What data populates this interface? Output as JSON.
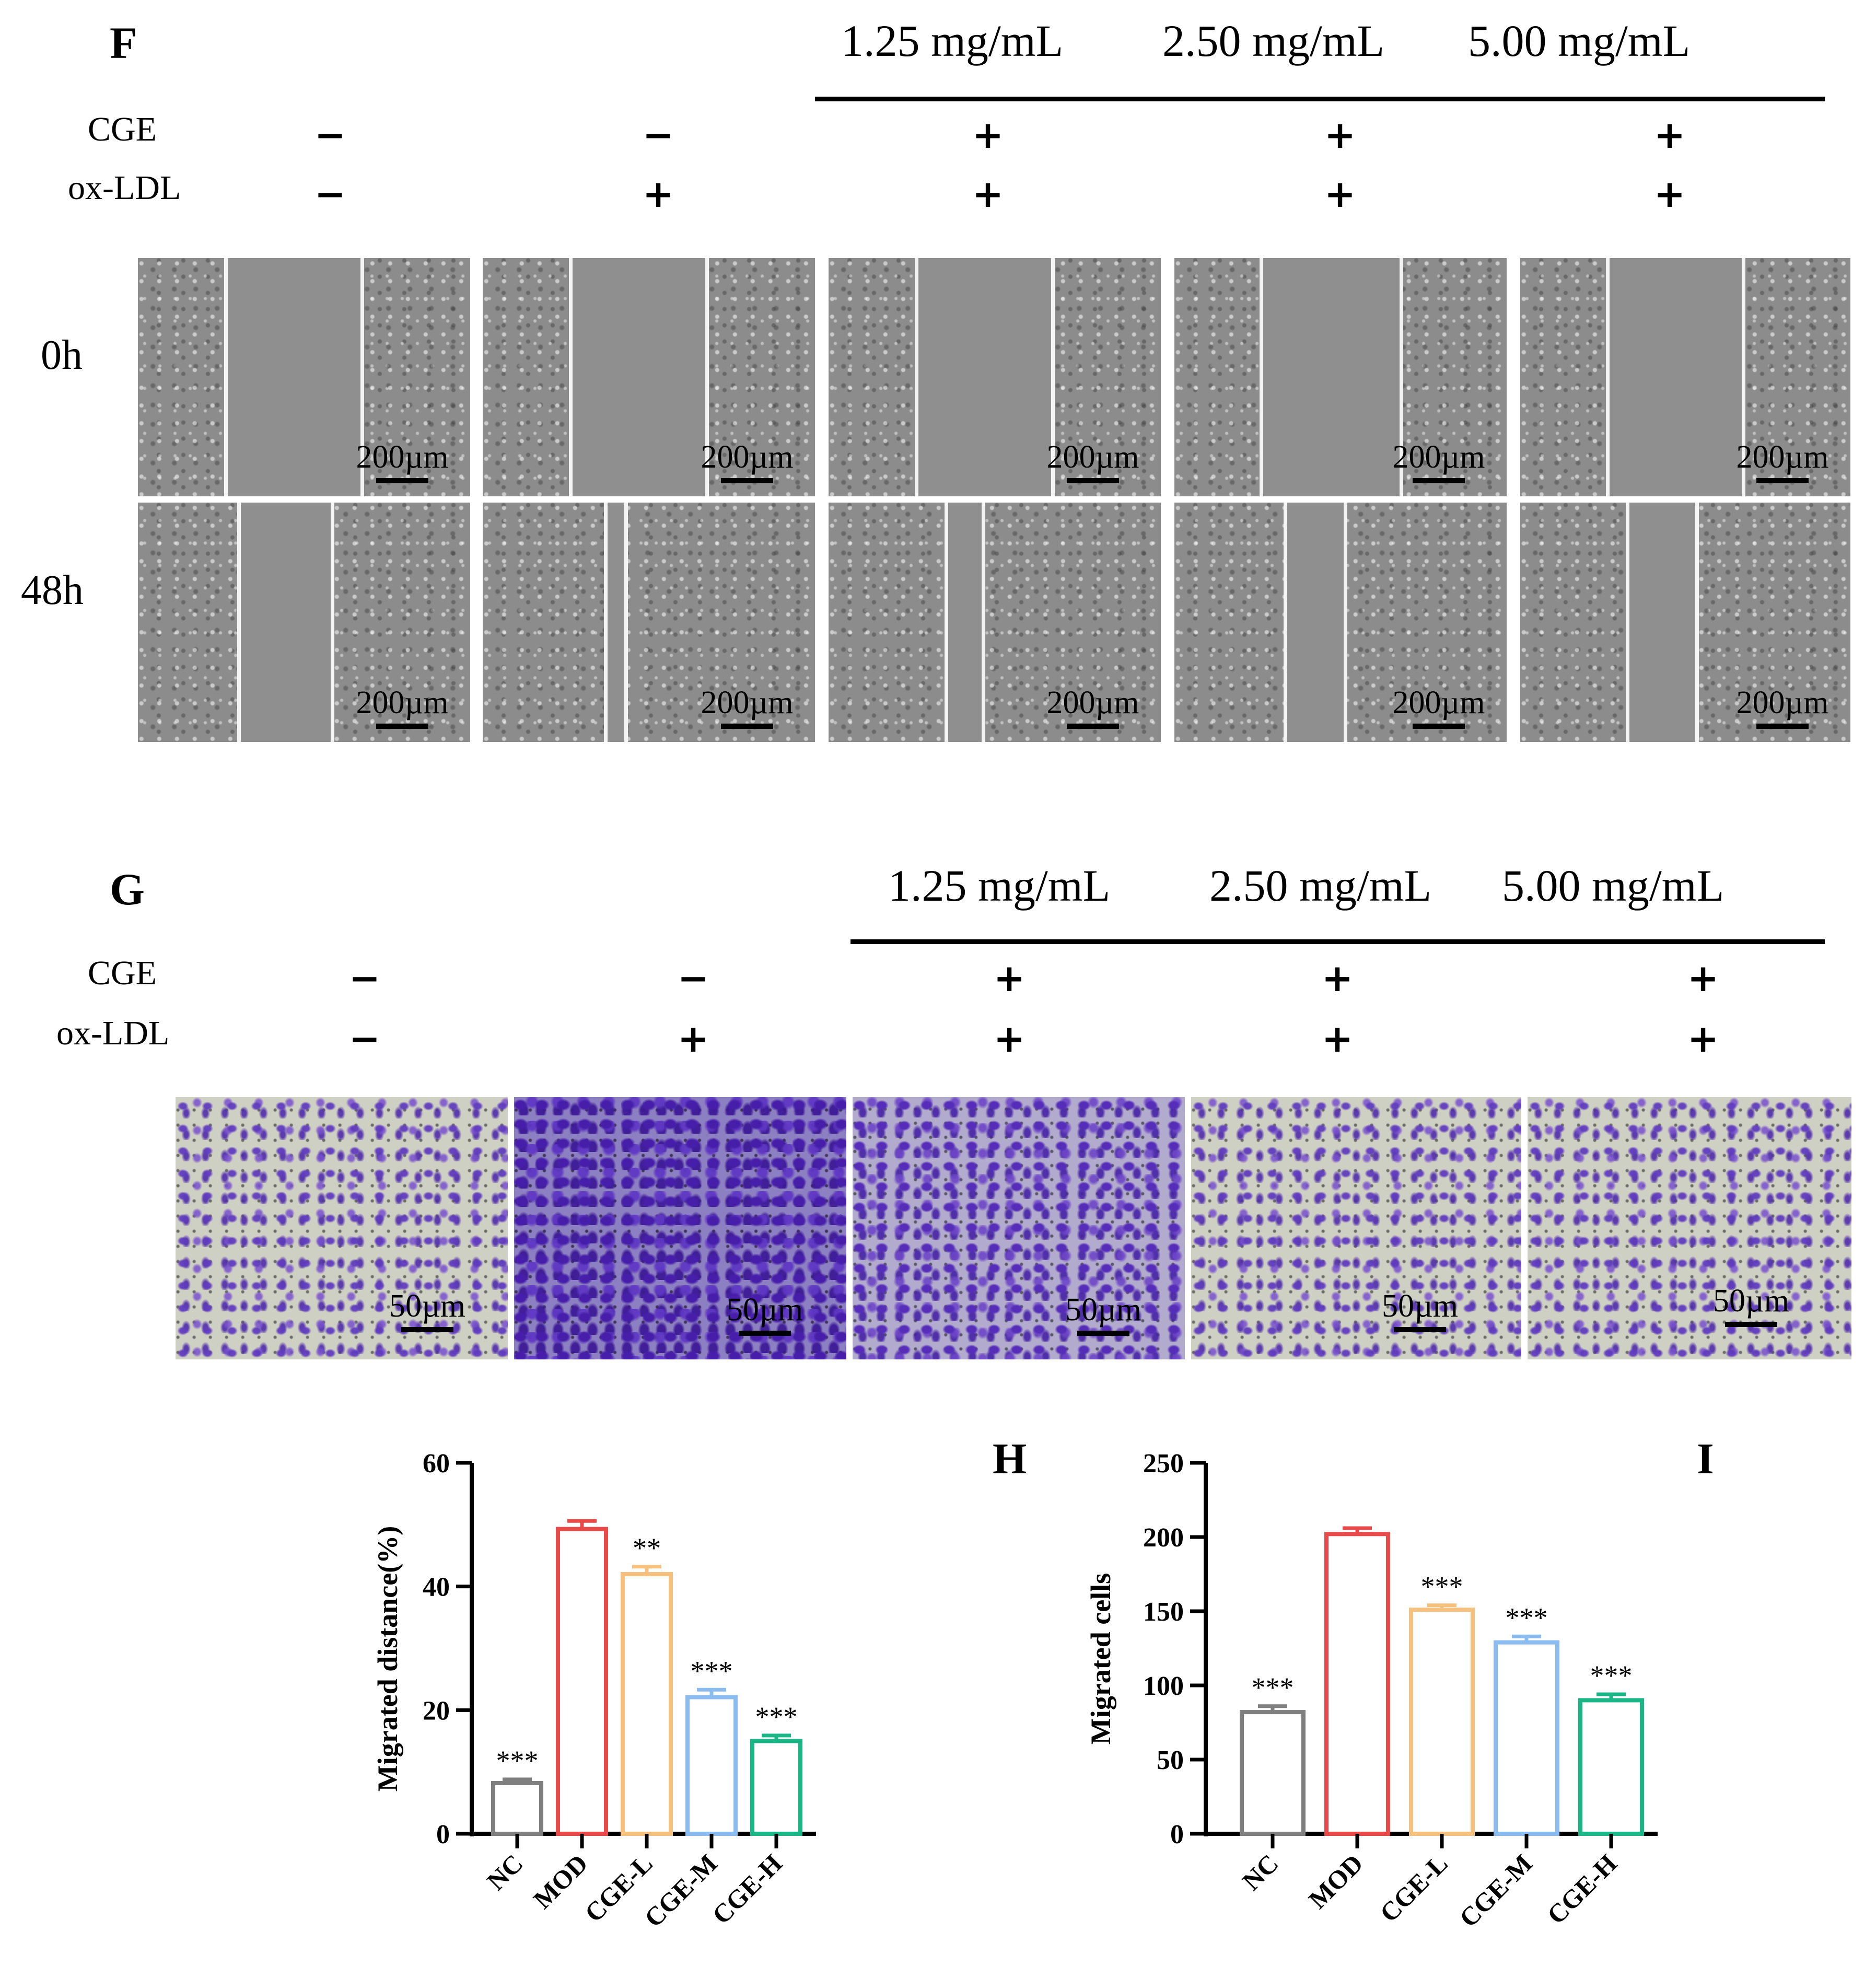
{
  "panel_f": {
    "letter": "F",
    "concentrations": [
      "1.25 mg/mL",
      "2.50 mg/mL",
      "5.00 mg/mL"
    ],
    "row_labels": {
      "cge": "CGE",
      "oxldl": "ox-LDL"
    },
    "cge_signs": [
      "−",
      "−",
      "+",
      "+",
      "+"
    ],
    "oxldl_signs": [
      "−",
      "+",
      "+",
      "+",
      "+"
    ],
    "time_labels": [
      "0h",
      "48h"
    ],
    "scale_label": "200µm",
    "wound_gap_fraction": {
      "0h": [
        0.4,
        0.4,
        0.4,
        0.41,
        0.4
      ],
      "48h": [
        0.27,
        0.05,
        0.1,
        0.17,
        0.2
      ]
    }
  },
  "panel_g": {
    "letter": "G",
    "concentrations": [
      "1.25 mg/mL",
      "2.50 mg/mL",
      "5.00 mg/mL"
    ],
    "row_labels": {
      "cge": "CGE",
      "oxldl": "ox-LDL"
    },
    "cge_signs": [
      "−",
      "−",
      "+",
      "+",
      "+"
    ],
    "oxldl_signs": [
      "−",
      "+",
      "+",
      "+",
      "+"
    ],
    "scale_label": "50µm"
  },
  "chart_data": [
    {
      "panel": "H",
      "type": "bar",
      "categories": [
        "NC",
        "MOD",
        "CGE-L",
        "CGE-M",
        "CGE-H"
      ],
      "values": [
        8.2,
        49.3,
        42.0,
        22.1,
        15.0
      ],
      "errors": [
        0.6,
        1.3,
        1.2,
        1.2,
        0.9
      ],
      "annotations": [
        "***",
        "",
        "**",
        "***",
        "***"
      ],
      "colors": [
        "#7f7f7f",
        "#e84a4a",
        "#f6c17f",
        "#8bbcf0",
        "#1bb685"
      ],
      "ylabel": "Migrated distance(%)",
      "ylim": [
        0,
        60
      ],
      "yticks": [
        0,
        20,
        40,
        60
      ]
    },
    {
      "panel": "I",
      "type": "bar",
      "categories": [
        "NC",
        "MOD",
        "CGE-L",
        "CGE-M",
        "CGE-H"
      ],
      "values": [
        82,
        202,
        151,
        129,
        90
      ],
      "errors": [
        4,
        4,
        3,
        4,
        4
      ],
      "annotations": [
        "***",
        "",
        "***",
        "***",
        "***"
      ],
      "colors": [
        "#7f7f7f",
        "#e84a4a",
        "#f6c17f",
        "#8bbcf0",
        "#1bb685"
      ],
      "ylabel": "Migrated cells",
      "ylim": [
        0,
        250
      ],
      "yticks": [
        0,
        50,
        100,
        150,
        200,
        250
      ]
    }
  ]
}
